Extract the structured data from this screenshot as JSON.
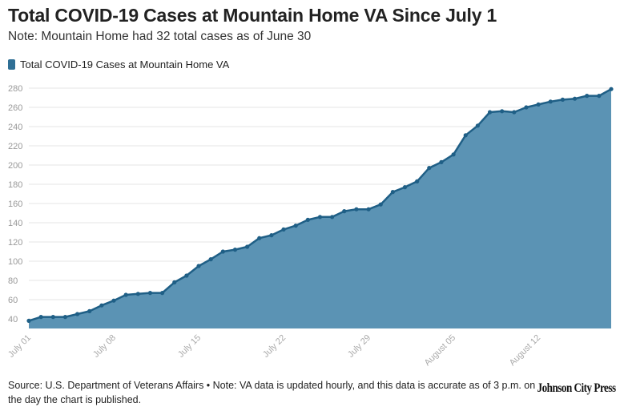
{
  "header": {
    "title": "Total COVID-19 Cases at Mountain Home VA Since July 1",
    "subtitle": "Note: Mountain Home had 32 total cases as of June 30"
  },
  "colors": {
    "area_fill": "#5b93b4",
    "line": "#1f5f86",
    "grid": "#e6e6e6",
    "axis_text": "#999999"
  },
  "footer": {
    "source": "Source: U.S. Department of Veterans Affairs • Note: VA data is updated hourly, and this data is accurate as of 3 p.m. on the day the chart is published.",
    "logo_text": "Johnson City Press"
  },
  "chart_data": {
    "type": "area",
    "title": "Total COVID-19 Cases at Mountain Home VA Since July 1",
    "xlabel": "",
    "ylabel": "",
    "ylim": [
      30,
      280
    ],
    "yticks": [
      40,
      60,
      80,
      100,
      120,
      140,
      160,
      180,
      200,
      220,
      240,
      260,
      280
    ],
    "grid": true,
    "legend": "top-left",
    "x_tick_labels": [
      {
        "label": "July 01",
        "day": 0
      },
      {
        "label": "July 08",
        "day": 7
      },
      {
        "label": "July 15",
        "day": 14
      },
      {
        "label": "July 22",
        "day": 21
      },
      {
        "label": "July 29",
        "day": 28
      },
      {
        "label": "August 05",
        "day": 35
      },
      {
        "label": "August 12",
        "day": 42
      }
    ],
    "series": [
      {
        "name": "Total COVID-19 Cases at Mountain Home VA",
        "x_start": "2020-07-01",
        "values": [
          38,
          42,
          42,
          42,
          45,
          48,
          54,
          59,
          65,
          66,
          67,
          67,
          78,
          85,
          95,
          102,
          110,
          112,
          115,
          124,
          127,
          133,
          137,
          143,
          146,
          146,
          152,
          154,
          154,
          159,
          172,
          177,
          183,
          197,
          203,
          211,
          231,
          241,
          255,
          256,
          255,
          260,
          263,
          266,
          268,
          269,
          272,
          272,
          279
        ]
      }
    ]
  }
}
